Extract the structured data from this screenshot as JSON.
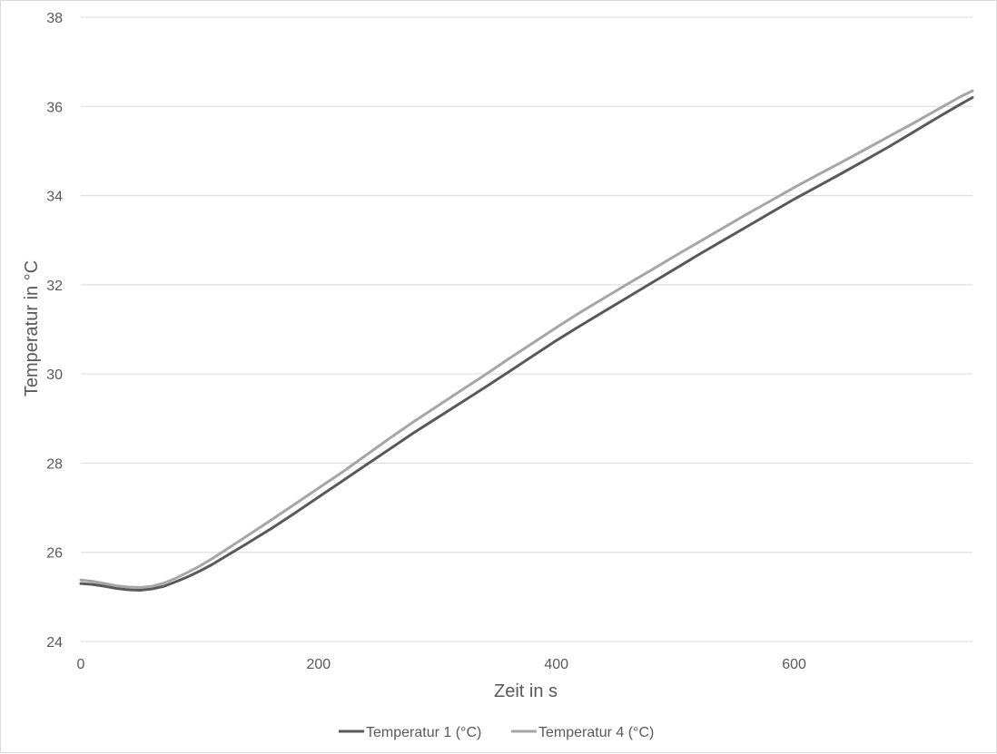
{
  "chart_data": {
    "type": "line",
    "xlabel": "Zeit in s",
    "ylabel": "Temperatur in °C",
    "xlim": [
      0,
      750
    ],
    "ylim": [
      24,
      38
    ],
    "x_ticks": [
      0,
      200,
      400,
      600
    ],
    "y_ticks": [
      24,
      26,
      28,
      30,
      32,
      34,
      36,
      38
    ],
    "grid": "horizontal",
    "legend_position": "bottom",
    "series": [
      {
        "name": "Temperatur 1 (°C)",
        "color": "#595959",
        "points": [
          [
            0,
            25.3
          ],
          [
            10,
            25.28
          ],
          [
            20,
            25.24
          ],
          [
            30,
            25.19
          ],
          [
            40,
            25.16
          ],
          [
            50,
            25.15
          ],
          [
            60,
            25.18
          ],
          [
            70,
            25.24
          ],
          [
            80,
            25.34
          ],
          [
            90,
            25.45
          ],
          [
            100,
            25.58
          ],
          [
            110,
            25.72
          ],
          [
            120,
            25.88
          ],
          [
            140,
            26.2
          ],
          [
            160,
            26.53
          ],
          [
            180,
            26.88
          ],
          [
            200,
            27.24
          ],
          [
            220,
            27.6
          ],
          [
            240,
            27.96
          ],
          [
            260,
            28.32
          ],
          [
            280,
            28.68
          ],
          [
            300,
            29.02
          ],
          [
            320,
            29.36
          ],
          [
            340,
            29.7
          ],
          [
            360,
            30.05
          ],
          [
            380,
            30.4
          ],
          [
            400,
            30.75
          ],
          [
            420,
            31.08
          ],
          [
            440,
            31.4
          ],
          [
            460,
            31.72
          ],
          [
            480,
            32.04
          ],
          [
            500,
            32.36
          ],
          [
            520,
            32.68
          ],
          [
            540,
            32.99
          ],
          [
            560,
            33.3
          ],
          [
            580,
            33.61
          ],
          [
            600,
            33.92
          ],
          [
            620,
            34.21
          ],
          [
            640,
            34.5
          ],
          [
            660,
            34.8
          ],
          [
            680,
            35.1
          ],
          [
            700,
            35.42
          ],
          [
            720,
            35.74
          ],
          [
            740,
            36.05
          ],
          [
            750,
            36.2
          ]
        ]
      },
      {
        "name": "Temperatur 4 (°C)",
        "color": "#a6a6a6",
        "points": [
          [
            0,
            25.38
          ],
          [
            10,
            25.35
          ],
          [
            20,
            25.3
          ],
          [
            30,
            25.25
          ],
          [
            40,
            25.22
          ],
          [
            50,
            25.21
          ],
          [
            60,
            25.24
          ],
          [
            70,
            25.31
          ],
          [
            80,
            25.42
          ],
          [
            90,
            25.55
          ],
          [
            100,
            25.69
          ],
          [
            110,
            25.85
          ],
          [
            120,
            26.02
          ],
          [
            140,
            26.37
          ],
          [
            160,
            26.72
          ],
          [
            180,
            27.08
          ],
          [
            200,
            27.44
          ],
          [
            220,
            27.8
          ],
          [
            240,
            28.18
          ],
          [
            260,
            28.56
          ],
          [
            280,
            28.93
          ],
          [
            300,
            29.28
          ],
          [
            320,
            29.63
          ],
          [
            340,
            29.98
          ],
          [
            360,
            30.34
          ],
          [
            380,
            30.69
          ],
          [
            400,
            31.04
          ],
          [
            420,
            31.38
          ],
          [
            440,
            31.7
          ],
          [
            460,
            32.02
          ],
          [
            480,
            32.33
          ],
          [
            500,
            32.65
          ],
          [
            520,
            32.96
          ],
          [
            540,
            33.27
          ],
          [
            560,
            33.58
          ],
          [
            580,
            33.88
          ],
          [
            600,
            34.18
          ],
          [
            620,
            34.47
          ],
          [
            640,
            34.75
          ],
          [
            660,
            35.04
          ],
          [
            680,
            35.33
          ],
          [
            700,
            35.62
          ],
          [
            720,
            35.92
          ],
          [
            740,
            36.22
          ],
          [
            750,
            36.35
          ]
        ]
      }
    ]
  }
}
